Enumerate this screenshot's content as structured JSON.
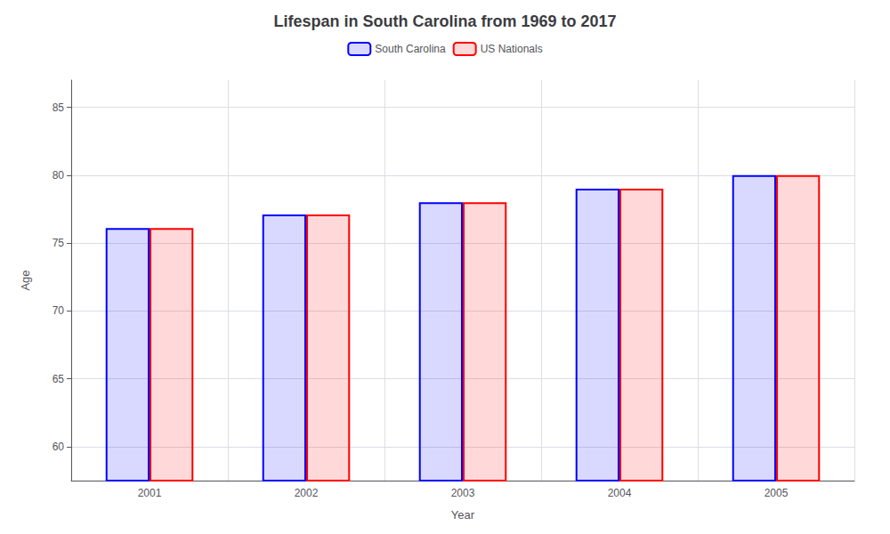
{
  "chart_data": {
    "type": "bar",
    "title": "Lifespan in South Carolina from 1969 to 2017",
    "xlabel": "Year",
    "ylabel": "Age",
    "categories": [
      "2001",
      "2002",
      "2003",
      "2004",
      "2005"
    ],
    "series": [
      {
        "name": "South Carolina",
        "color": "#0000ff",
        "values": [
          76.1,
          77.1,
          78.0,
          79.0,
          80.0
        ]
      },
      {
        "name": "US Nationals",
        "color": "#ff0000",
        "values": [
          76.1,
          77.1,
          78.0,
          79.0,
          80.0
        ]
      }
    ],
    "ylim": [
      57.5,
      87
    ],
    "yticks": [
      60,
      65,
      70,
      75,
      80,
      85
    ],
    "grid": true,
    "legend": "top"
  }
}
